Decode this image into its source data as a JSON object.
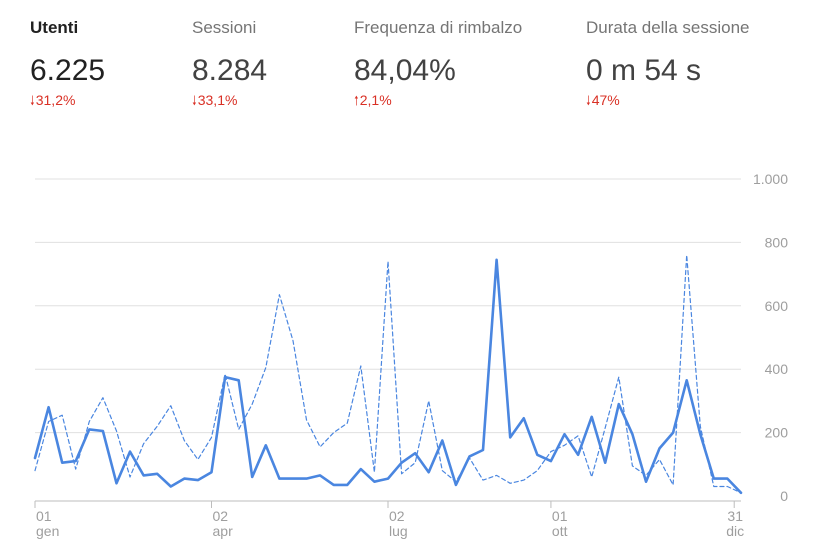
{
  "metrics": [
    {
      "label": "Utenti",
      "value": "6.225",
      "delta": "31,2%",
      "direction": "down",
      "selected": true
    },
    {
      "label": "Sessioni",
      "value": "8.284",
      "delta": "33,1%",
      "direction": "down",
      "selected": false
    },
    {
      "label": "Frequenza di rimbalzo",
      "value": "84,04%",
      "delta": "2,1%",
      "direction": "up",
      "selected": false
    },
    {
      "label": "Durata della sessione",
      "value": "0 m 54 s",
      "delta": "47%",
      "direction": "down",
      "selected": false
    }
  ],
  "colors": {
    "series": "#4a86e0",
    "delta_negative": "#d93025",
    "grid": "#e0e0e0",
    "axis": "#bdbdbd",
    "tick_text": "#9e9e9e"
  },
  "chart_data": {
    "type": "line",
    "x_range": [
      0,
      52
    ],
    "ylim": [
      0,
      1000
    ],
    "y_ticks": [
      {
        "value": 0,
        "label": "0"
      },
      {
        "value": 200,
        "label": "200"
      },
      {
        "value": 400,
        "label": "400"
      },
      {
        "value": 600,
        "label": "600"
      },
      {
        "value": 800,
        "label": "800"
      },
      {
        "value": 1000,
        "label": "1.000"
      }
    ],
    "x_ticks": [
      {
        "x": 0,
        "day": "01",
        "month": "gen"
      },
      {
        "x": 13,
        "day": "02",
        "month": "apr"
      },
      {
        "x": 26,
        "day": "02",
        "month": "lug"
      },
      {
        "x": 38,
        "day": "01",
        "month": "ott"
      },
      {
        "x": 51.5,
        "day": "31",
        "month": "dic"
      }
    ],
    "grid": true,
    "legend": "none",
    "series": [
      {
        "style": "solid",
        "x": [
          0,
          1,
          2,
          3,
          4,
          5,
          6,
          7,
          8,
          9,
          10,
          11,
          12,
          13,
          14,
          15,
          16,
          17,
          18,
          19,
          20,
          21,
          22,
          23,
          24,
          25,
          26,
          27,
          28,
          29,
          30,
          31,
          32,
          33,
          34,
          35,
          36,
          37,
          38,
          39,
          40,
          41,
          42,
          43,
          44,
          45,
          46,
          47,
          48,
          49,
          50,
          51,
          52
        ],
        "values": [
          120,
          280,
          105,
          110,
          210,
          205,
          40,
          140,
          65,
          70,
          30,
          55,
          50,
          75,
          375,
          365,
          60,
          160,
          55,
          55,
          55,
          65,
          35,
          35,
          85,
          45,
          55,
          105,
          135,
          75,
          175,
          35,
          125,
          145,
          745,
          185,
          245,
          130,
          110,
          195,
          130,
          250,
          105,
          290,
          195,
          45,
          150,
          200,
          365,
          195,
          55,
          55,
          10
        ]
      },
      {
        "style": "dashed",
        "x": [
          0,
          1,
          2,
          3,
          4,
          5,
          6,
          7,
          8,
          9,
          10,
          11,
          12,
          13,
          14,
          15,
          16,
          17,
          18,
          19,
          20,
          21,
          22,
          23,
          24,
          25,
          26,
          27,
          28,
          29,
          30,
          31,
          32,
          33,
          34,
          35,
          36,
          37,
          38,
          39,
          40,
          41,
          42,
          43,
          44,
          45,
          46,
          47,
          48,
          49,
          50,
          51,
          52
        ],
        "values": [
          80,
          235,
          255,
          85,
          235,
          310,
          205,
          60,
          165,
          220,
          285,
          175,
          115,
          185,
          385,
          210,
          290,
          405,
          635,
          490,
          240,
          155,
          200,
          230,
          410,
          75,
          740,
          70,
          105,
          300,
          80,
          45,
          120,
          50,
          65,
          40,
          50,
          80,
          140,
          160,
          190,
          60,
          215,
          375,
          95,
          65,
          115,
          35,
          760,
          220,
          30,
          30,
          10
        ]
      }
    ]
  }
}
